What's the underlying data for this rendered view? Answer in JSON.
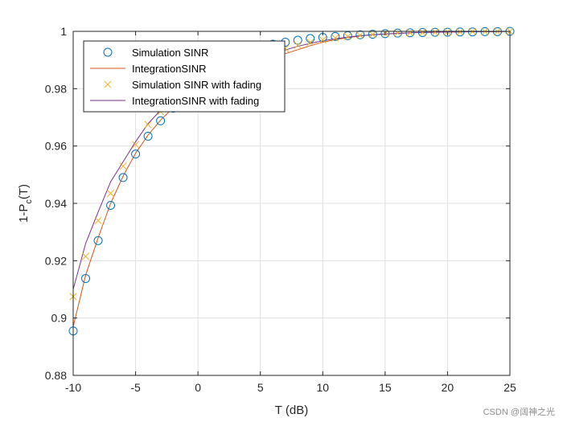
{
  "chart_data": {
    "type": "line",
    "xlabel": "T (dB)",
    "ylabel": "1-P",
    "ylabel_sub": "c",
    "ylabel_suffix": "(T)",
    "xlim": [
      -10,
      25
    ],
    "ylim": [
      0.88,
      1.0
    ],
    "grid": true,
    "legend_position": "top-left",
    "x_ticks": [
      -10,
      -5,
      0,
      5,
      10,
      15,
      20,
      25
    ],
    "x_tick_labels": [
      "-10",
      "-5",
      "0",
      "5",
      "10",
      "15",
      "20",
      "25"
    ],
    "y_ticks": [
      0.88,
      0.9,
      0.92,
      0.94,
      0.96,
      0.98,
      1.0
    ],
    "y_tick_labels": [
      "0.88",
      "0.9",
      "0.92",
      "0.94",
      "0.96",
      "0.98",
      "1"
    ],
    "series": [
      {
        "name": "Simulation SINR",
        "marker": "circle",
        "color": "#0072BD",
        "x": [
          -10,
          -9,
          -8,
          -7,
          -6,
          -5,
          -4,
          -3,
          -2,
          -1,
          0,
          1,
          2,
          3,
          4,
          5,
          6,
          7,
          8,
          9,
          10,
          11,
          12,
          13,
          14,
          15,
          16,
          17,
          18,
          19,
          20,
          21,
          22,
          23,
          24,
          25
        ],
        "y": [
          0.8955,
          0.9138,
          0.927,
          0.9393,
          0.949,
          0.9572,
          0.9634,
          0.9688,
          0.9732,
          0.977,
          0.9801,
          0.9828,
          0.9852,
          0.9872,
          0.989,
          0.9905,
          0.9955,
          0.9962,
          0.9969,
          0.9975,
          0.9979,
          0.9982,
          0.9985,
          0.9988,
          0.999,
          0.9992,
          0.9994,
          0.9995,
          0.9996,
          0.9997,
          0.9997,
          0.9998,
          0.9998,
          0.9999,
          0.9999,
          1.0
        ]
      },
      {
        "name": "IntegrationSINR",
        "marker": "none",
        "color": "#D95319",
        "x": [
          -10,
          -9,
          -8,
          -7,
          -6,
          -5,
          -4,
          -3,
          -2,
          -1,
          0,
          1,
          2,
          3,
          4,
          5,
          6,
          7,
          8,
          9,
          10,
          11,
          12,
          13,
          14,
          15,
          16,
          17,
          18,
          19,
          20,
          21,
          22,
          23,
          24,
          25
        ],
        "y": [
          0.897,
          0.915,
          0.928,
          0.94,
          0.9495,
          0.9575,
          0.9638,
          0.969,
          0.9733,
          0.977,
          0.98,
          0.9826,
          0.9848,
          0.9867,
          0.9884,
          0.9898,
          0.9911,
          0.9922,
          0.9936,
          0.995,
          0.9962,
          0.9971,
          0.9978,
          0.9984,
          0.9988,
          0.9991,
          0.9993,
          0.9995,
          0.9996,
          0.9997,
          0.9998,
          0.9998,
          0.9999,
          0.9999,
          0.9999,
          1.0
        ]
      },
      {
        "name": "Simulation SINR with fading",
        "marker": "x",
        "color": "#EDB120",
        "x": [
          -10,
          -9,
          -8,
          -7,
          -6,
          -5,
          -4,
          -3,
          -2,
          -1,
          0,
          1,
          2,
          3,
          4,
          5,
          6,
          7,
          8,
          9,
          10,
          11,
          12,
          13,
          14,
          15,
          16,
          17,
          18,
          19,
          20,
          21,
          22,
          23,
          24,
          25
        ],
        "y": [
          0.9075,
          0.9215,
          0.934,
          0.9435,
          0.953,
          0.9605,
          0.9675,
          0.972,
          0.9758,
          0.979,
          0.9816,
          0.984,
          0.986,
          0.9877,
          0.9892,
          0.9905,
          0.9925,
          0.994,
          0.9952,
          0.9962,
          0.997,
          0.9977,
          0.9982,
          0.9986,
          0.9989,
          0.9992,
          0.9994,
          0.9995,
          0.9996,
          0.9997,
          0.9998,
          0.9998,
          0.9999,
          0.9999,
          0.9999,
          1.0
        ]
      },
      {
        "name": "IntegrationSINR with fading",
        "marker": "none",
        "color": "#7E2F8E",
        "x": [
          -10,
          -9,
          -8,
          -7,
          -6,
          -5,
          -4,
          -3,
          -2,
          -1,
          0,
          1,
          2,
          3,
          4,
          5,
          6,
          7,
          8,
          9,
          10,
          11,
          12,
          13,
          14,
          15,
          16,
          17,
          18,
          19,
          20,
          21,
          22,
          23,
          24,
          25
        ],
        "y": [
          0.91,
          0.926,
          0.937,
          0.9475,
          0.9545,
          0.9615,
          0.9678,
          0.9725,
          0.9762,
          0.9793,
          0.9818,
          0.9841,
          0.986,
          0.9876,
          0.989,
          0.9902,
          0.992,
          0.9935,
          0.9948,
          0.9958,
          0.9967,
          0.9974,
          0.998,
          0.9985,
          0.9988,
          0.9991,
          0.9993,
          0.9995,
          0.9996,
          0.9997,
          0.9998,
          0.9998,
          0.9999,
          0.9999,
          0.9999,
          1.0
        ]
      }
    ]
  },
  "watermark": "CSDN @阔神之光"
}
